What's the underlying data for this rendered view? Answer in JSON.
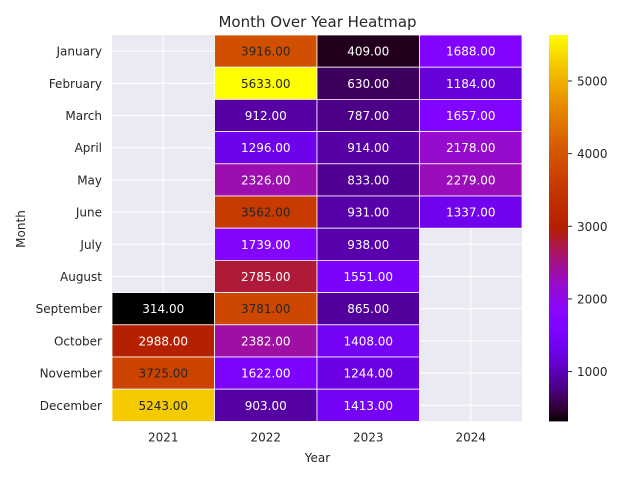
{
  "chart_data": {
    "type": "heatmap",
    "title": "Month Over Year Heatmap",
    "xlabel": "Year",
    "ylabel": "Month",
    "x_categories": [
      "2021",
      "2022",
      "2023",
      "2024"
    ],
    "y_categories": [
      "January",
      "February",
      "March",
      "April",
      "May",
      "June",
      "July",
      "August",
      "September",
      "October",
      "November",
      "December"
    ],
    "values": [
      [
        null,
        3916.0,
        409.0,
        1688.0
      ],
      [
        null,
        5633.0,
        630.0,
        1184.0
      ],
      [
        null,
        912.0,
        787.0,
        1657.0
      ],
      [
        null,
        1296.0,
        914.0,
        2178.0
      ],
      [
        null,
        2326.0,
        833.0,
        2279.0
      ],
      [
        null,
        3562.0,
        931.0,
        1337.0
      ],
      [
        null,
        1739.0,
        938.0,
        null
      ],
      [
        null,
        2785.0,
        1551.0,
        null
      ],
      [
        314.0,
        3781.0,
        865.0,
        null
      ],
      [
        2988.0,
        2382.0,
        1408.0,
        null
      ],
      [
        3725.0,
        1622.0,
        1244.0,
        null
      ],
      [
        5243.0,
        903.0,
        1413.0,
        null
      ]
    ],
    "value_format": "0.00",
    "colormap": "gnuplot",
    "colorbar": {
      "min": 314.0,
      "max": 5633.0,
      "ticks": [
        1000,
        2000,
        3000,
        4000,
        5000
      ]
    },
    "missing_color": "#eaeaf2",
    "grid": true
  }
}
